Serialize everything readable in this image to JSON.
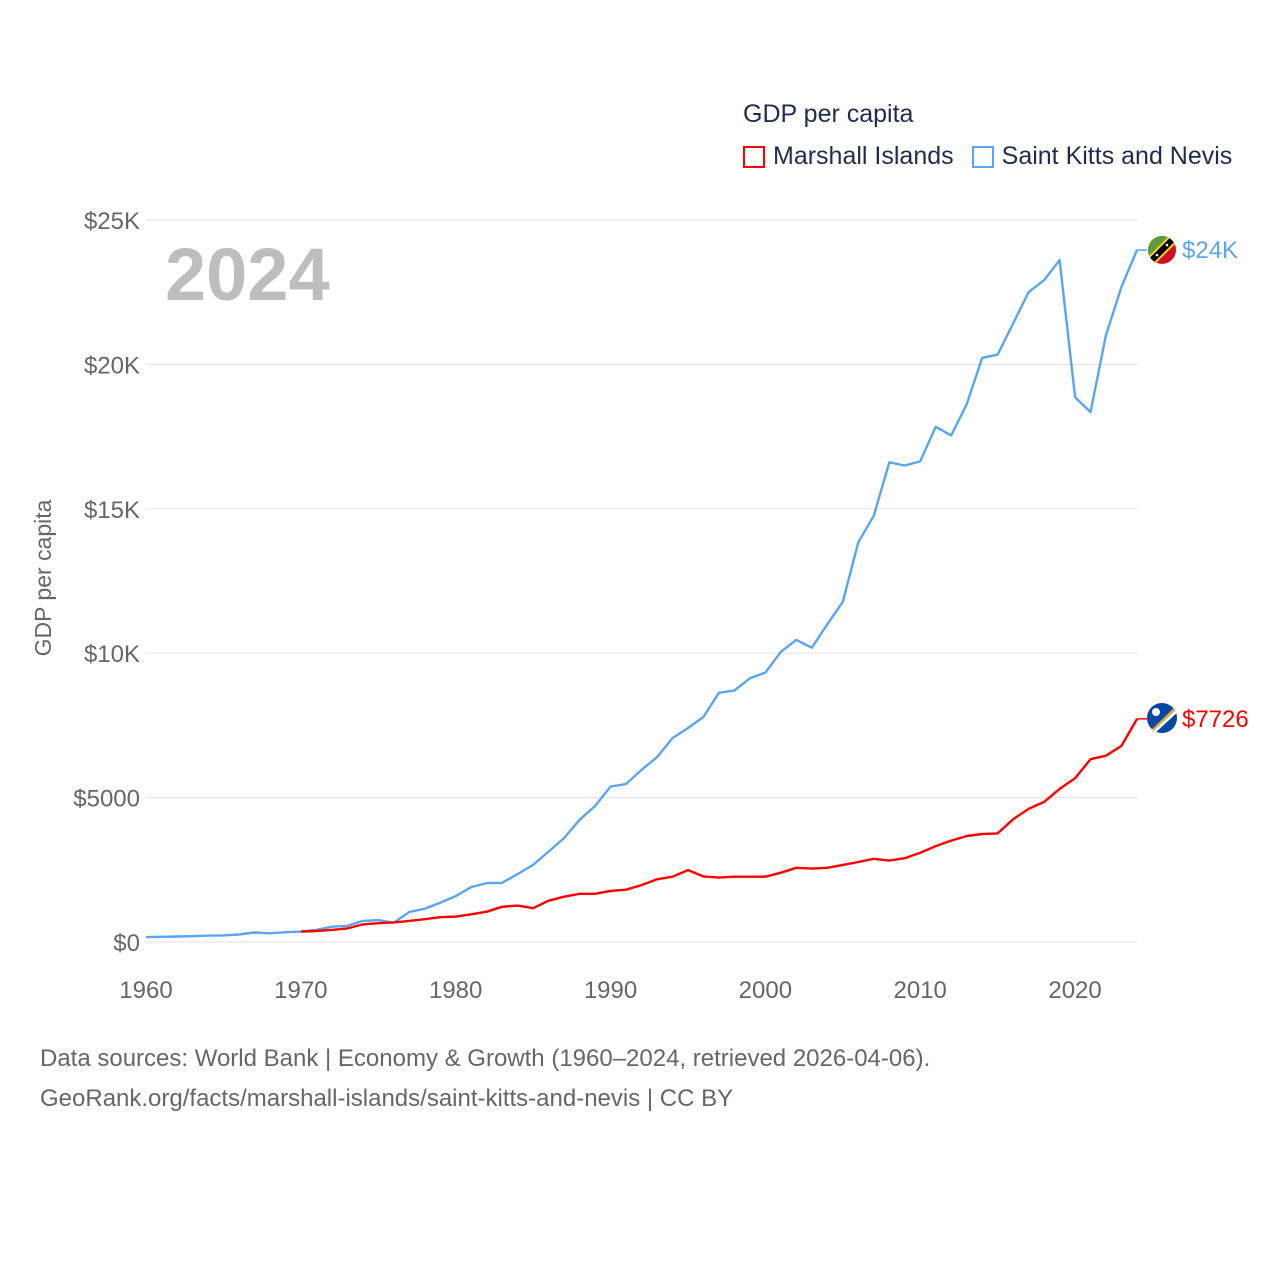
{
  "legend": {
    "title": "GDP per capita",
    "items": [
      {
        "label": "Marshall Islands",
        "color": "#ff0000"
      },
      {
        "label": "Saint Kitts and Nevis",
        "color": "#5aa5ee"
      }
    ]
  },
  "footer": {
    "line1": "Data sources: World Bank | Economy & Growth (1960–2024, retrieved 2026-04-06).",
    "line2": "GeoRank.org/facts/marshall-islands/saint-kitts-and-nevis | CC BY"
  },
  "chart_data": {
    "type": "line",
    "title": "GDP per capita",
    "year_label": "2024",
    "xlabel": "",
    "ylabel": "GDP per capita",
    "xlim": [
      1960,
      2024
    ],
    "ylim": [
      0,
      25000
    ],
    "x_ticks": [
      1960,
      1970,
      1980,
      1990,
      2000,
      2010,
      2020
    ],
    "x_tick_labels": [
      "1960",
      "1970",
      "1980",
      "1990",
      "2000",
      "2010",
      "2020"
    ],
    "y_ticks": [
      0,
      5000,
      10000,
      15000,
      20000,
      25000
    ],
    "y_tick_labels": [
      "$0",
      "$5000",
      "$10K",
      "$15K",
      "$20K",
      "$25K"
    ],
    "grid": true,
    "legend_position": "top-right",
    "x": [
      1960,
      1961,
      1962,
      1963,
      1964,
      1965,
      1966,
      1967,
      1968,
      1969,
      1970,
      1971,
      1972,
      1973,
      1974,
      1975,
      1976,
      1977,
      1978,
      1979,
      1980,
      1981,
      1982,
      1983,
      1984,
      1985,
      1986,
      1987,
      1988,
      1989,
      1990,
      1991,
      1992,
      1993,
      1994,
      1995,
      1996,
      1997,
      1998,
      1999,
      2000,
      2001,
      2002,
      2003,
      2004,
      2005,
      2006,
      2007,
      2008,
      2009,
      2010,
      2011,
      2012,
      2013,
      2014,
      2015,
      2016,
      2017,
      2018,
      2019,
      2020,
      2021,
      2022,
      2023,
      2024
    ],
    "series": [
      {
        "name": "Saint Kitts and Nevis",
        "color": "#5aa5ee",
        "end_label": "$24K",
        "values": [
          170,
          180,
          190,
          200,
          220,
          230,
          260,
          330,
          300,
          340,
          360,
          420,
          530,
          560,
          730,
          760,
          670,
          1040,
          1150,
          1360,
          1590,
          1900,
          2040,
          2050,
          2350,
          2670,
          3130,
          3600,
          4230,
          4710,
          5380,
          5470,
          5960,
          6400,
          7060,
          7410,
          7790,
          8630,
          8710,
          9130,
          9330,
          10050,
          10460,
          10190,
          11000,
          11780,
          13840,
          14760,
          16610,
          16500,
          16640,
          17840,
          17540,
          18620,
          20230,
          20340,
          21420,
          22500,
          22920,
          23610,
          18860,
          18350,
          21020,
          22690,
          23960
        ]
      },
      {
        "name": "Marshall Islands",
        "color": "#ff0000",
        "end_label": "$7726",
        "values": [
          null,
          null,
          null,
          null,
          null,
          null,
          null,
          null,
          null,
          null,
          360,
          380,
          420,
          470,
          610,
          650,
          680,
          730,
          790,
          860,
          880,
          960,
          1050,
          1220,
          1260,
          1170,
          1430,
          1570,
          1670,
          1670,
          1770,
          1810,
          1970,
          2170,
          2260,
          2490,
          2270,
          2230,
          2260,
          2260,
          2260,
          2400,
          2570,
          2540,
          2570,
          2670,
          2770,
          2880,
          2820,
          2900,
          3090,
          3320,
          3510,
          3670,
          3740,
          3760,
          4250,
          4610,
          4850,
          5300,
          5670,
          6330,
          6450,
          6790,
          7726
        ]
      }
    ]
  }
}
